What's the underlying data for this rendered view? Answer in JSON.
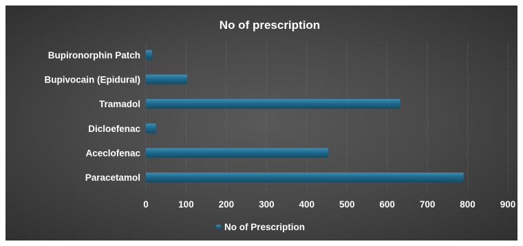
{
  "chart_data": {
    "type": "bar",
    "orientation": "horizontal",
    "title": "No of prescription",
    "categories": [
      "Paracetamol",
      "Aceclofenac",
      "Dicloefenac",
      "Tramadol",
      "Bupivocain (Epidural)",
      "Bupironorphin Patch"
    ],
    "series": [
      {
        "name": "No of Prescription",
        "values": [
          790,
          453,
          25,
          632,
          103,
          15
        ],
        "color": "#1f6b8f"
      }
    ],
    "xlim": [
      0,
      900
    ],
    "xticks": [
      "0",
      "100",
      "200",
      "300",
      "400",
      "500",
      "600",
      "700",
      "800",
      "900"
    ],
    "grid": true,
    "legend": "bottom",
    "colors": {
      "background_center": "#595959",
      "background_edge": "#303030",
      "bar": "#1f6b8f",
      "bar_highlight": "#3d8fb5",
      "bar_shadow": "#144a63",
      "text": "#ffffff"
    }
  }
}
